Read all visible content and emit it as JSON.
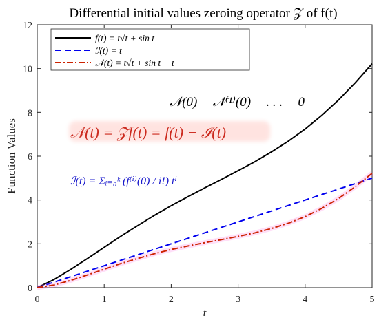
{
  "chart_data": {
    "type": "line",
    "title": "Differential initial values zeroing operator 𝒵 of f(t)",
    "xlabel": "t",
    "ylabel": "Function Values",
    "xlim": [
      0,
      5
    ],
    "ylim": [
      0,
      12
    ],
    "xticks": [
      0,
      1,
      2,
      3,
      4,
      5
    ],
    "yticks": [
      0,
      2,
      4,
      6,
      8,
      10,
      12
    ],
    "grid": false,
    "legend_position": "top-left",
    "x": [
      0,
      0.25,
      0.5,
      0.75,
      1,
      1.25,
      1.5,
      1.75,
      2,
      2.25,
      2.5,
      2.75,
      3,
      3.25,
      3.5,
      3.75,
      4,
      4.25,
      4.5,
      4.75,
      5
    ],
    "series": [
      {
        "name": "f(t) = t√t + sin t",
        "color": "#000000",
        "dash": "solid",
        "values": [
          0,
          0.37,
          0.83,
          1.33,
          1.84,
          2.35,
          2.83,
          3.3,
          3.74,
          4.15,
          4.55,
          4.94,
          5.34,
          5.75,
          6.2,
          6.69,
          7.24,
          7.87,
          8.57,
          9.36,
          10.22
        ]
      },
      {
        "name": "ℐ(t) = t",
        "color": "#0000ee",
        "dash": "dashed",
        "values": [
          0,
          0.25,
          0.5,
          0.75,
          1,
          1.25,
          1.5,
          1.75,
          2,
          2.25,
          2.5,
          2.75,
          3,
          3.25,
          3.5,
          3.75,
          4,
          4.25,
          4.5,
          4.75,
          5
        ]
      },
      {
        "name": "𝒩(t) = t√t + sin t − t",
        "color": "#cc2200",
        "dash": "dashdot",
        "values": [
          0,
          0.12,
          0.33,
          0.58,
          0.84,
          1.1,
          1.33,
          1.55,
          1.74,
          1.9,
          2.05,
          2.19,
          2.34,
          2.5,
          2.7,
          2.94,
          3.24,
          3.62,
          4.07,
          4.61,
          5.22
        ]
      }
    ],
    "annotations": [
      {
        "text": "𝒩(0) = 𝒩⁽¹⁾(0) = . . . = 0",
        "color": "#000000"
      },
      {
        "text": "𝒩(t) = 𝒵f(t) = f(t) − ℐ(t)",
        "color": "#cc2a1e"
      },
      {
        "text": "ℐ(t) = Σᵢ₌₀ᵏ (f⁽ⁱ⁾(0) / i!) tⁱ",
        "color": "#1a1acc"
      }
    ]
  }
}
